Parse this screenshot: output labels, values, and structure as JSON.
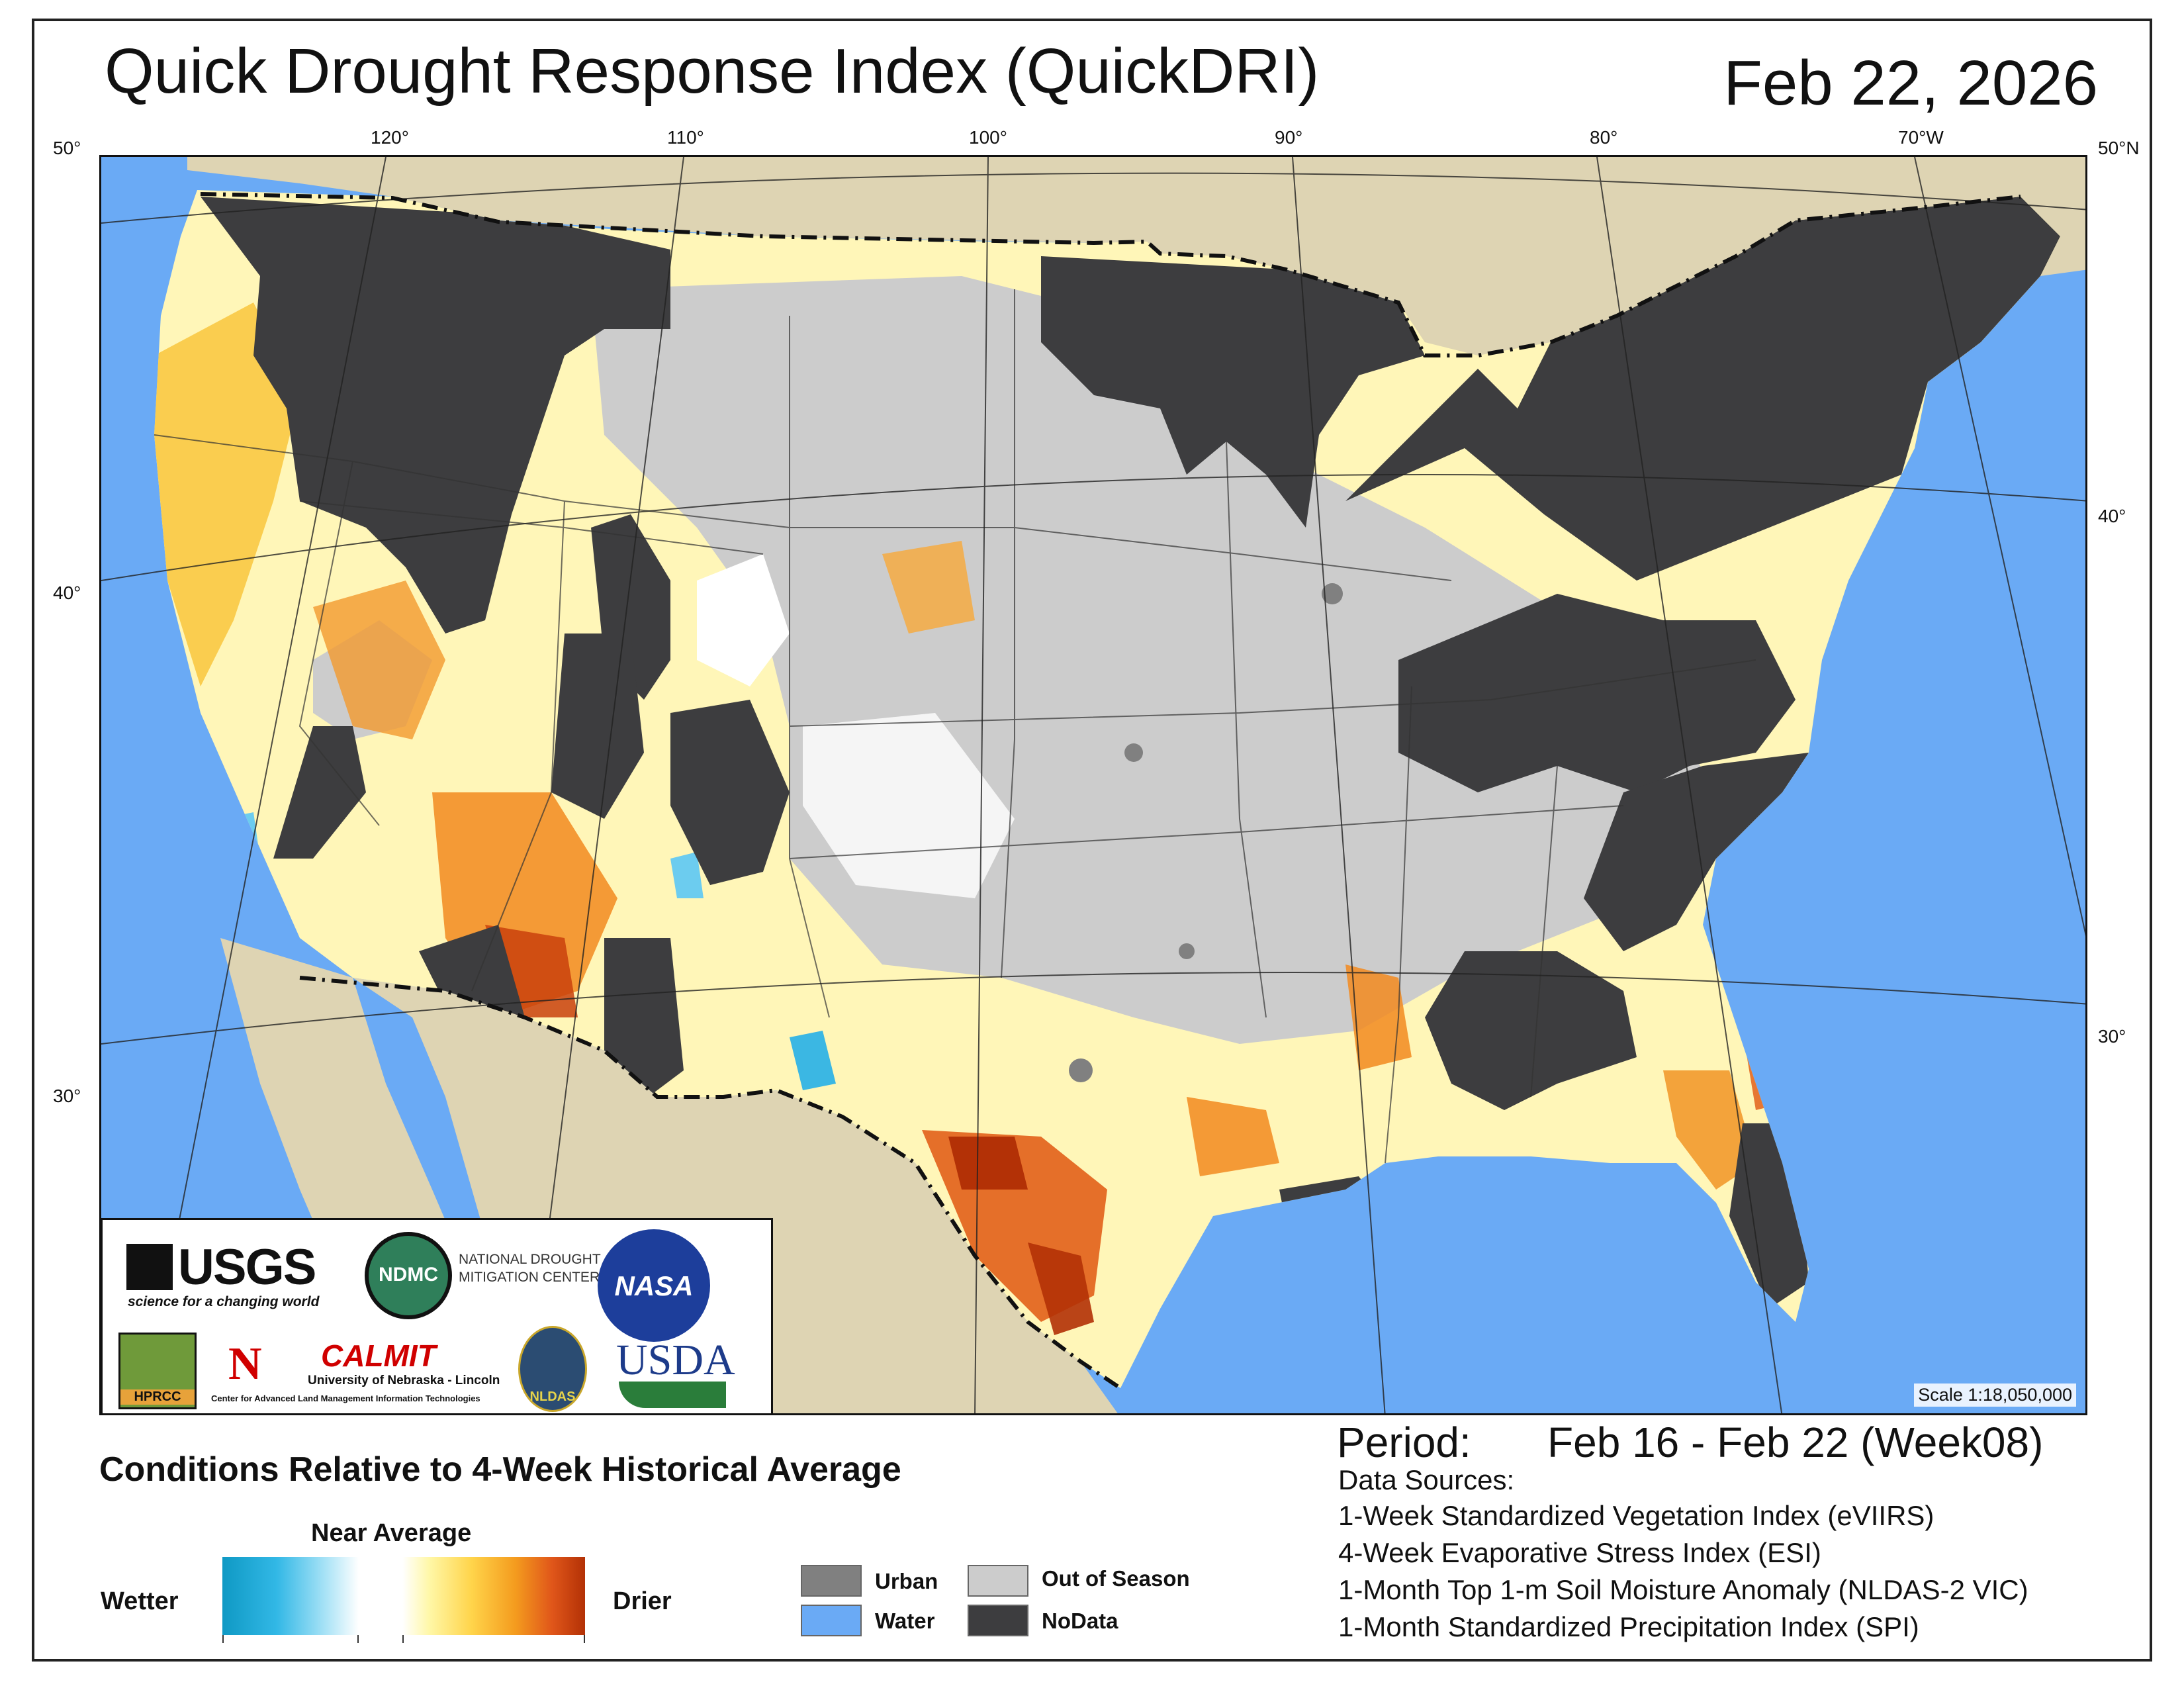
{
  "header": {
    "title": "Quick Drought Response Index (QuickDRI)",
    "date": "Feb 22, 2026"
  },
  "graticule": {
    "longitudes": [
      "120°",
      "110°",
      "100°",
      "90°",
      "80°",
      "70°W"
    ],
    "latitudes_left": [
      "50°",
      "40°",
      "30°"
    ],
    "latitudes_right": [
      "50°N",
      "40°",
      "30°"
    ]
  },
  "map": {
    "scale": "Scale 1:18,050,000",
    "colors": {
      "ocean": "#6aaaf5",
      "land_outside": "#ded4b3",
      "nodata": "#3d3d3f",
      "out_of_season": "#cccccc",
      "urban": "#8a8a8a",
      "near_average": "#ffffff",
      "dry_light": "#fff3a0",
      "dry_mid": "#f7b731",
      "dry_strong": "#e2601a",
      "dry_extreme": "#b33106",
      "wet": "#3bb7e3"
    }
  },
  "logos": {
    "usgs": "USGS",
    "usgs_tagline": "science for a changing world",
    "ndmc": "NDMC",
    "ndmc_name": [
      "NATIONAL DROUGHT",
      "MITIGATION CENTER"
    ],
    "nasa": "NASA",
    "hprcc": "HPRCC",
    "unl_mark": "N",
    "calmit": "CALMIT",
    "calmit_univ": "University of Nebraska - Lincoln",
    "calmit_center": "Center for Advanced Land Management Information Technologies",
    "nldas": "NLDAS",
    "usda": "USDA"
  },
  "legend": {
    "title": "Conditions Relative to 4-Week Historical Average",
    "near_average": "Near Average",
    "wetter": "Wetter",
    "drier": "Drier",
    "categories": [
      {
        "label": "Urban",
        "color": "#808080"
      },
      {
        "label": "Water",
        "color": "#6aaaf5"
      },
      {
        "label": "Out of Season",
        "color": "#cccccc"
      },
      {
        "label": "NoData",
        "color": "#3d3d3f"
      }
    ]
  },
  "period": {
    "label": "Period:",
    "value": "Feb 16 - Feb 22 (Week08)"
  },
  "data_sources": {
    "title": "Data Sources:",
    "items": [
      "1-Week Standardized Vegetation Index (eVIIRS)",
      "4-Week Evaporative Stress Index (ESI)",
      "1-Month Top 1-m Soil Moisture Anomaly (NLDAS-2 VIC)",
      "1-Month Standardized Precipitation Index (SPI)"
    ]
  }
}
